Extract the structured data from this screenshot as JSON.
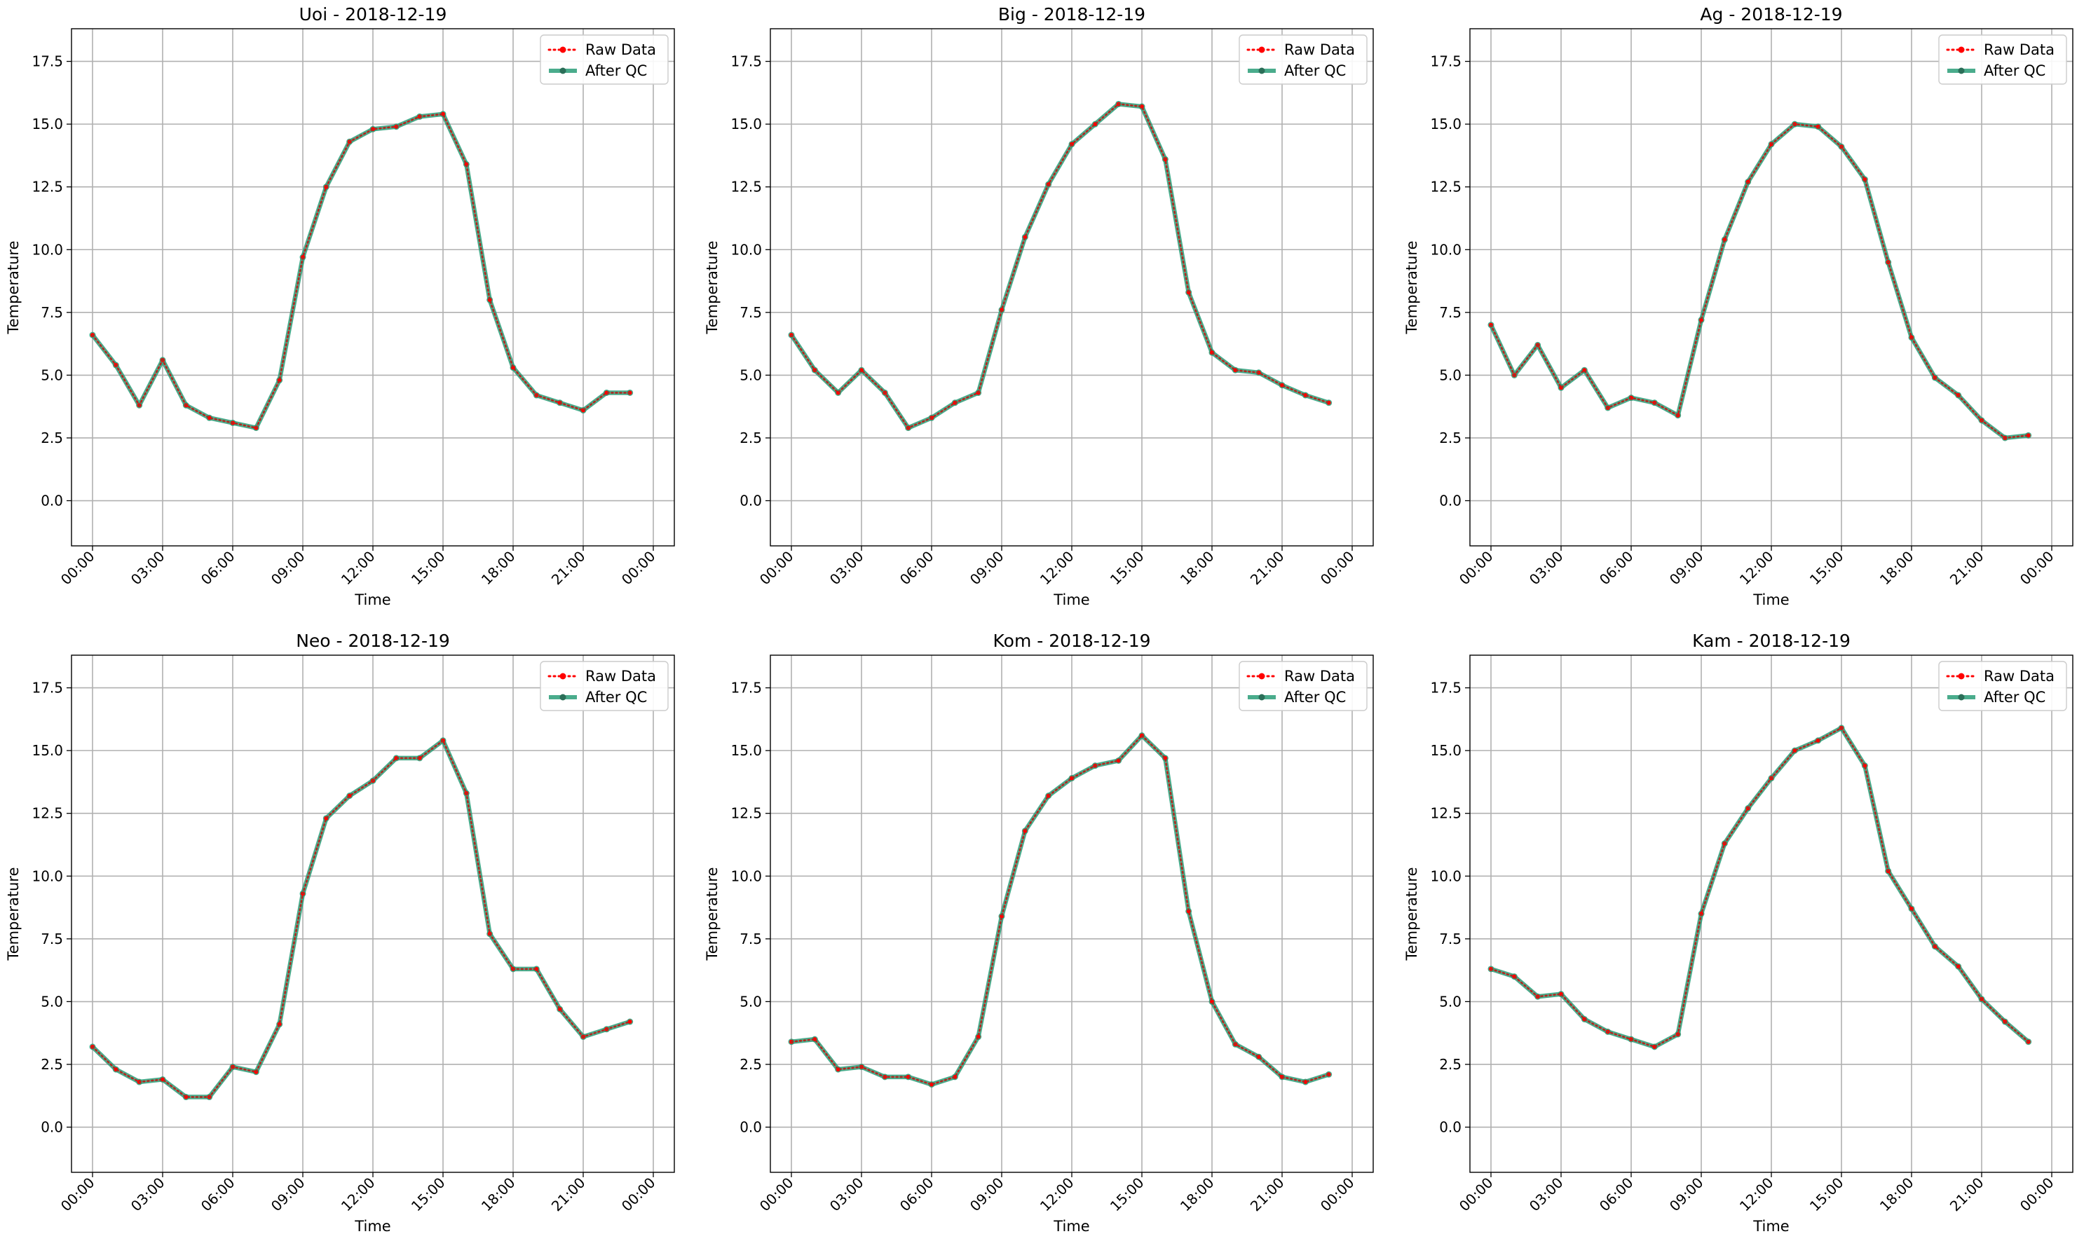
{
  "chart_data": [
    {
      "type": "line",
      "title": "Uoi - 2018-12-19",
      "xlabel": "Time",
      "ylabel": "Temperature",
      "x": [
        "00:00",
        "01:00",
        "02:00",
        "03:00",
        "04:00",
        "05:00",
        "06:00",
        "07:00",
        "08:00",
        "09:00",
        "10:00",
        "11:00",
        "12:00",
        "13:00",
        "14:00",
        "15:00",
        "16:00",
        "17:00",
        "18:00",
        "19:00",
        "20:00",
        "21:00",
        "22:00",
        "23:00"
      ],
      "xticks": [
        "00:00",
        "03:00",
        "06:00",
        "09:00",
        "12:00",
        "15:00",
        "18:00",
        "21:00",
        "00:00"
      ],
      "yticks": [
        "0.0",
        "2.5",
        "5.0",
        "7.5",
        "10.0",
        "12.5",
        "15.0",
        "17.5"
      ],
      "ylim": [
        -1.8,
        18.8
      ],
      "grid": true,
      "legend_position": "top-right",
      "series": [
        {
          "name": "Raw Data",
          "color": "#ff0000",
          "style": "dotted",
          "values": [
            6.6,
            5.4,
            3.8,
            5.6,
            3.8,
            3.3,
            3.1,
            2.9,
            4.8,
            9.7,
            12.5,
            14.3,
            14.8,
            14.9,
            15.3,
            15.4,
            13.4,
            8.0,
            5.3,
            4.2,
            3.9,
            3.6,
            4.3,
            4.3
          ]
        },
        {
          "name": "After QC",
          "color": "#2a9d78",
          "style": "solid",
          "values": [
            6.6,
            5.4,
            3.8,
            5.6,
            3.8,
            3.3,
            3.1,
            2.9,
            4.8,
            9.7,
            12.5,
            14.3,
            14.8,
            14.9,
            15.3,
            15.4,
            13.4,
            8.0,
            5.3,
            4.2,
            3.9,
            3.6,
            4.3,
            4.3
          ]
        }
      ]
    },
    {
      "type": "line",
      "title": "Big - 2018-12-19",
      "xlabel": "Time",
      "ylabel": "Temperature",
      "x": [
        "00:00",
        "01:00",
        "02:00",
        "03:00",
        "04:00",
        "05:00",
        "06:00",
        "07:00",
        "08:00",
        "09:00",
        "10:00",
        "11:00",
        "12:00",
        "13:00",
        "14:00",
        "15:00",
        "16:00",
        "17:00",
        "18:00",
        "19:00",
        "20:00",
        "21:00",
        "22:00",
        "23:00"
      ],
      "xticks": [
        "00:00",
        "03:00",
        "06:00",
        "09:00",
        "12:00",
        "15:00",
        "18:00",
        "21:00",
        "00:00"
      ],
      "yticks": [
        "0.0",
        "2.5",
        "5.0",
        "7.5",
        "10.0",
        "12.5",
        "15.0",
        "17.5"
      ],
      "ylim": [
        -1.8,
        18.8
      ],
      "grid": true,
      "legend_position": "top-right",
      "series": [
        {
          "name": "Raw Data",
          "color": "#ff0000",
          "style": "dotted",
          "values": [
            6.6,
            5.2,
            4.3,
            5.2,
            4.3,
            2.9,
            3.3,
            3.9,
            4.3,
            7.6,
            10.5,
            12.6,
            14.2,
            15.0,
            15.8,
            15.7,
            13.6,
            8.3,
            5.9,
            5.2,
            5.1,
            4.6,
            4.2,
            3.9
          ]
        },
        {
          "name": "After QC",
          "color": "#2a9d78",
          "style": "solid",
          "values": [
            6.6,
            5.2,
            4.3,
            5.2,
            4.3,
            2.9,
            3.3,
            3.9,
            4.3,
            7.6,
            10.5,
            12.6,
            14.2,
            15.0,
            15.8,
            15.7,
            13.6,
            8.3,
            5.9,
            5.2,
            5.1,
            4.6,
            4.2,
            3.9
          ]
        }
      ]
    },
    {
      "type": "line",
      "title": "Ag - 2018-12-19",
      "xlabel": "Time",
      "ylabel": "Temperature",
      "x": [
        "00:00",
        "01:00",
        "02:00",
        "03:00",
        "04:00",
        "05:00",
        "06:00",
        "07:00",
        "08:00",
        "09:00",
        "10:00",
        "11:00",
        "12:00",
        "13:00",
        "14:00",
        "15:00",
        "16:00",
        "17:00",
        "18:00",
        "19:00",
        "20:00",
        "21:00",
        "22:00",
        "23:00"
      ],
      "xticks": [
        "00:00",
        "03:00",
        "06:00",
        "09:00",
        "12:00",
        "15:00",
        "18:00",
        "21:00",
        "00:00"
      ],
      "yticks": [
        "0.0",
        "2.5",
        "5.0",
        "7.5",
        "10.0",
        "12.5",
        "15.0",
        "17.5"
      ],
      "ylim": [
        -1.8,
        18.8
      ],
      "grid": true,
      "legend_position": "top-right",
      "series": [
        {
          "name": "Raw Data",
          "color": "#ff0000",
          "style": "dotted",
          "values": [
            7.0,
            5.0,
            6.2,
            4.5,
            5.2,
            3.7,
            4.1,
            3.9,
            3.4,
            7.2,
            10.4,
            12.7,
            14.2,
            15.0,
            14.9,
            14.1,
            12.8,
            9.5,
            6.5,
            4.9,
            4.2,
            3.2,
            2.5,
            2.6
          ]
        },
        {
          "name": "After QC",
          "color": "#2a9d78",
          "style": "solid",
          "values": [
            7.0,
            5.0,
            6.2,
            4.5,
            5.2,
            3.7,
            4.1,
            3.9,
            3.4,
            7.2,
            10.4,
            12.7,
            14.2,
            15.0,
            14.9,
            14.1,
            12.8,
            9.5,
            6.5,
            4.9,
            4.2,
            3.2,
            2.5,
            2.6
          ]
        }
      ]
    },
    {
      "type": "line",
      "title": "Neo - 2018-12-19",
      "xlabel": "Time",
      "ylabel": "Temperature",
      "x": [
        "00:00",
        "01:00",
        "02:00",
        "03:00",
        "04:00",
        "05:00",
        "06:00",
        "07:00",
        "08:00",
        "09:00",
        "10:00",
        "11:00",
        "12:00",
        "13:00",
        "14:00",
        "15:00",
        "16:00",
        "17:00",
        "18:00",
        "19:00",
        "20:00",
        "21:00",
        "22:00",
        "23:00"
      ],
      "xticks": [
        "00:00",
        "03:00",
        "06:00",
        "09:00",
        "12:00",
        "15:00",
        "18:00",
        "21:00",
        "00:00"
      ],
      "yticks": [
        "0.0",
        "2.5",
        "5.0",
        "7.5",
        "10.0",
        "12.5",
        "15.0",
        "17.5"
      ],
      "ylim": [
        -1.8,
        18.8
      ],
      "grid": true,
      "legend_position": "top-right",
      "series": [
        {
          "name": "Raw Data",
          "color": "#ff0000",
          "style": "dotted",
          "values": [
            3.2,
            2.3,
            1.8,
            1.9,
            1.2,
            1.2,
            2.4,
            2.2,
            4.1,
            9.3,
            12.3,
            13.2,
            13.8,
            14.7,
            14.7,
            15.4,
            13.3,
            7.7,
            6.3,
            6.3,
            4.7,
            3.6,
            3.9,
            4.2
          ]
        },
        {
          "name": "After QC",
          "color": "#2a9d78",
          "style": "solid",
          "values": [
            3.2,
            2.3,
            1.8,
            1.9,
            1.2,
            1.2,
            2.4,
            2.2,
            4.1,
            9.3,
            12.3,
            13.2,
            13.8,
            14.7,
            14.7,
            15.4,
            13.3,
            7.7,
            6.3,
            6.3,
            4.7,
            3.6,
            3.9,
            4.2
          ]
        }
      ]
    },
    {
      "type": "line",
      "title": "Kom - 2018-12-19",
      "xlabel": "Time",
      "ylabel": "Temperature",
      "x": [
        "00:00",
        "01:00",
        "02:00",
        "03:00",
        "04:00",
        "05:00",
        "06:00",
        "07:00",
        "08:00",
        "09:00",
        "10:00",
        "11:00",
        "12:00",
        "13:00",
        "14:00",
        "15:00",
        "16:00",
        "17:00",
        "18:00",
        "19:00",
        "20:00",
        "21:00",
        "22:00",
        "23:00"
      ],
      "xticks": [
        "00:00",
        "03:00",
        "06:00",
        "09:00",
        "12:00",
        "15:00",
        "18:00",
        "21:00",
        "00:00"
      ],
      "yticks": [
        "0.0",
        "2.5",
        "5.0",
        "7.5",
        "10.0",
        "12.5",
        "15.0",
        "17.5"
      ],
      "ylim": [
        -1.8,
        18.8
      ],
      "grid": true,
      "legend_position": "top-right",
      "series": [
        {
          "name": "Raw Data",
          "color": "#ff0000",
          "style": "dotted",
          "values": [
            3.4,
            3.5,
            2.3,
            2.4,
            2.0,
            2.0,
            1.7,
            2.0,
            3.6,
            8.4,
            11.8,
            13.2,
            13.9,
            14.4,
            14.6,
            15.6,
            14.7,
            8.6,
            5.0,
            3.3,
            2.8,
            2.0,
            1.8,
            2.1
          ]
        },
        {
          "name": "After QC",
          "color": "#2a9d78",
          "style": "solid",
          "values": [
            3.4,
            3.5,
            2.3,
            2.4,
            2.0,
            2.0,
            1.7,
            2.0,
            3.6,
            8.4,
            11.8,
            13.2,
            13.9,
            14.4,
            14.6,
            15.6,
            14.7,
            8.6,
            5.0,
            3.3,
            2.8,
            2.0,
            1.8,
            2.1
          ]
        }
      ]
    },
    {
      "type": "line",
      "title": "Kam - 2018-12-19",
      "xlabel": "Time",
      "ylabel": "Temperature",
      "x": [
        "00:00",
        "01:00",
        "02:00",
        "03:00",
        "04:00",
        "05:00",
        "06:00",
        "07:00",
        "08:00",
        "09:00",
        "10:00",
        "11:00",
        "12:00",
        "13:00",
        "14:00",
        "15:00",
        "16:00",
        "17:00",
        "18:00",
        "19:00",
        "20:00",
        "21:00",
        "22:00",
        "23:00"
      ],
      "xticks": [
        "00:00",
        "03:00",
        "06:00",
        "09:00",
        "12:00",
        "15:00",
        "18:00",
        "21:00",
        "00:00"
      ],
      "yticks": [
        "0.0",
        "2.5",
        "5.0",
        "7.5",
        "10.0",
        "12.5",
        "15.0",
        "17.5"
      ],
      "ylim": [
        -1.8,
        18.8
      ],
      "grid": true,
      "legend_position": "top-right",
      "series": [
        {
          "name": "Raw Data",
          "color": "#ff0000",
          "style": "dotted",
          "values": [
            6.3,
            6.0,
            5.2,
            5.3,
            4.3,
            3.8,
            3.5,
            3.2,
            3.7,
            8.5,
            11.3,
            12.7,
            13.9,
            15.0,
            15.4,
            15.9,
            14.4,
            10.2,
            8.7,
            7.2,
            6.4,
            5.1,
            4.2,
            3.4
          ]
        },
        {
          "name": "After QC",
          "color": "#2a9d78",
          "style": "solid",
          "values": [
            6.3,
            6.0,
            5.2,
            5.3,
            4.3,
            3.8,
            3.5,
            3.2,
            3.7,
            8.5,
            11.3,
            12.7,
            13.9,
            15.0,
            15.4,
            15.9,
            14.4,
            10.2,
            8.7,
            7.2,
            6.4,
            5.1,
            4.2,
            3.4
          ]
        }
      ]
    }
  ]
}
